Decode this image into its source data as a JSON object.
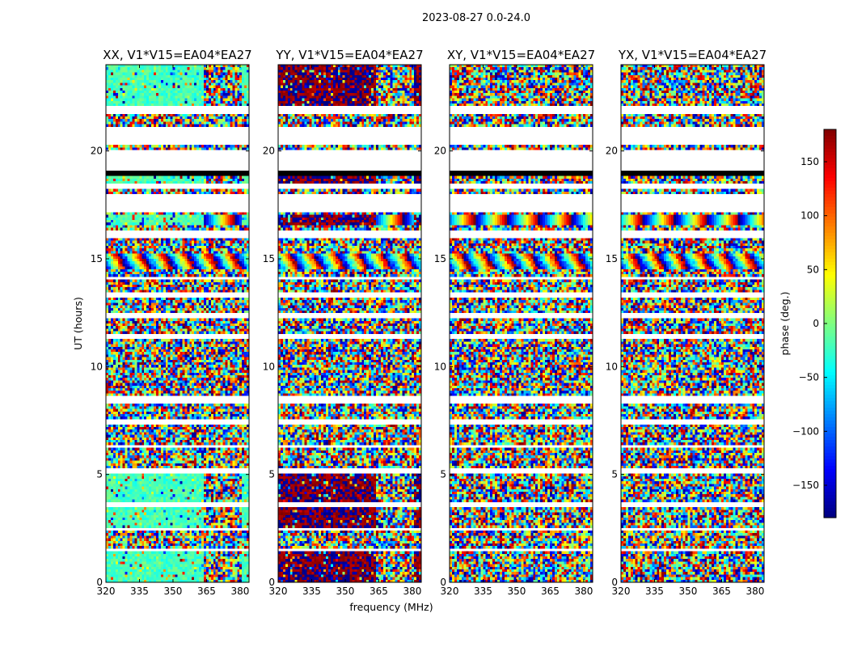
{
  "figure": {
    "suptitle": "2023-08-27 0.0-24.0"
  },
  "chart_data": {
    "type": "heatmap",
    "xlabel": "frequency (MHz)",
    "ylabel": "UT (hours)",
    "xlim": [
      320,
      384
    ],
    "ylim": [
      0,
      24
    ],
    "x_ticks": [
      "320",
      "335",
      "350",
      "365",
      "380"
    ],
    "y_ticks": [
      "0",
      "5",
      "10",
      "15",
      "20"
    ],
    "x_tick_values": [
      320,
      335,
      350,
      365,
      380
    ],
    "y_tick_values": [
      0,
      5,
      10,
      15,
      20
    ],
    "panels": [
      {
        "title": "XX, V1*V15=EA04*EA27",
        "correlation": "XX",
        "coherent_phase_deg": -20
      },
      {
        "title": "YY, V1*V15=EA04*EA27",
        "correlation": "YY",
        "coherent_phase_deg": 178
      },
      {
        "title": "XY, V1*V15=EA04*EA27",
        "correlation": "XY",
        "coherent_phase_deg": null
      },
      {
        "title": "YX, V1*V15=EA04*EA27",
        "correlation": "YX",
        "coherent_phase_deg": null
      }
    ],
    "colorbar": {
      "label": "phase (deg.)",
      "range": [
        -180,
        180
      ],
      "ticks": [
        "150",
        "100",
        "50",
        "0",
        "−50",
        "−100",
        "−150"
      ],
      "tick_values": [
        150,
        100,
        50,
        0,
        -50,
        -100,
        -150
      ],
      "colormap": "jet"
    },
    "flagged_ut_ranges_hours": [
      [
        21.7,
        22.1
      ],
      [
        20.3,
        21.1
      ],
      [
        19.1,
        20.0
      ],
      [
        18.2,
        18.5
      ],
      [
        17.2,
        18.0
      ],
      [
        16.0,
        16.3
      ],
      [
        14.0,
        14.2
      ],
      [
        13.2,
        13.4
      ],
      [
        12.3,
        12.5
      ],
      [
        11.3,
        11.5
      ],
      [
        8.3,
        8.6
      ],
      [
        7.3,
        7.5
      ],
      [
        6.2,
        6.4
      ],
      [
        5.0,
        5.3
      ],
      [
        3.5,
        3.7
      ],
      [
        2.4,
        2.5
      ],
      [
        1.5,
        1.6
      ],
      [
        0.3,
        0.35
      ]
    ],
    "fully_black_ut_ranges_hours": [
      [
        18.9,
        19.1
      ]
    ]
  }
}
